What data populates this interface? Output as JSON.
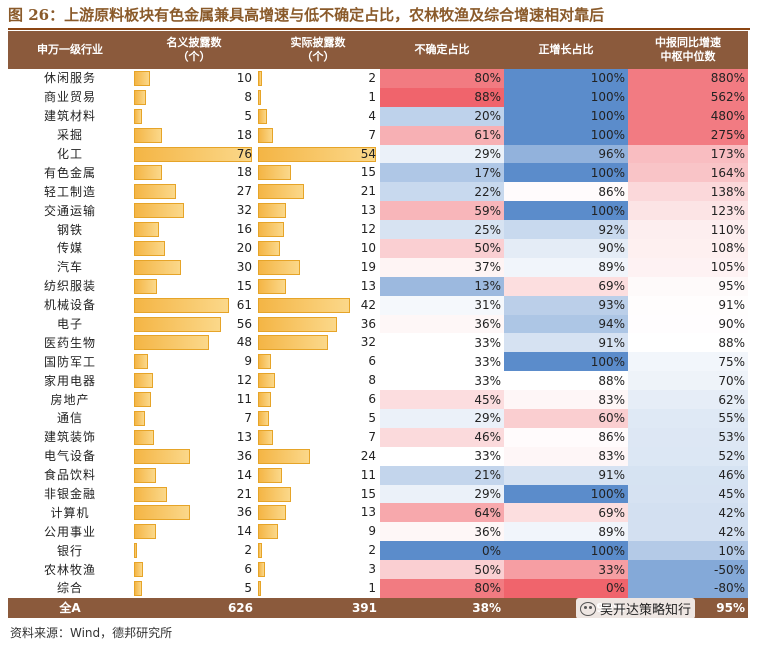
{
  "title": "图 26：上游原料板块有色金属兼具高增速与低不确定占比，农林牧渔及综合增速相对靠后",
  "headers": {
    "industry": "申万一级行业",
    "nominal": "名义披露数\n（个）",
    "actual": "实际披露数\n（个）",
    "uncertain": "不确定占比",
    "positive": "正增长占比",
    "median": "中报同比增速\n中枢中位数"
  },
  "colors": {
    "header_bg": "#8b5a3c",
    "bar": "#f4b545",
    "blue": "#5b8ccb",
    "red": "#f0646c"
  },
  "rows": [
    {
      "name": "休闲服务",
      "nominal": 10,
      "actual": 2,
      "uncertain": "80%",
      "positive": "100%",
      "median": "880%"
    },
    {
      "name": "商业贸易",
      "nominal": 8,
      "actual": 1,
      "uncertain": "88%",
      "positive": "100%",
      "median": "562%"
    },
    {
      "name": "建筑材料",
      "nominal": 5,
      "actual": 4,
      "uncertain": "20%",
      "positive": "100%",
      "median": "480%"
    },
    {
      "name": "采掘",
      "nominal": 18,
      "actual": 7,
      "uncertain": "61%",
      "positive": "100%",
      "median": "275%"
    },
    {
      "name": "化工",
      "nominal": 76,
      "actual": 54,
      "uncertain": "29%",
      "positive": "96%",
      "median": "173%"
    },
    {
      "name": "有色金属",
      "nominal": 18,
      "actual": 15,
      "uncertain": "17%",
      "positive": "100%",
      "median": "164%"
    },
    {
      "name": "轻工制造",
      "nominal": 27,
      "actual": 21,
      "uncertain": "22%",
      "positive": "86%",
      "median": "138%"
    },
    {
      "name": "交通运输",
      "nominal": 32,
      "actual": 13,
      "uncertain": "59%",
      "positive": "100%",
      "median": "123%"
    },
    {
      "name": "钢铁",
      "nominal": 16,
      "actual": 12,
      "uncertain": "25%",
      "positive": "92%",
      "median": "110%"
    },
    {
      "name": "传媒",
      "nominal": 20,
      "actual": 10,
      "uncertain": "50%",
      "positive": "90%",
      "median": "108%"
    },
    {
      "name": "汽车",
      "nominal": 30,
      "actual": 19,
      "uncertain": "37%",
      "positive": "89%",
      "median": "105%"
    },
    {
      "name": "纺织服装",
      "nominal": 15,
      "actual": 13,
      "uncertain": "13%",
      "positive": "69%",
      "median": "95%"
    },
    {
      "name": "机械设备",
      "nominal": 61,
      "actual": 42,
      "uncertain": "31%",
      "positive": "93%",
      "median": "91%"
    },
    {
      "name": "电子",
      "nominal": 56,
      "actual": 36,
      "uncertain": "36%",
      "positive": "94%",
      "median": "90%"
    },
    {
      "name": "医药生物",
      "nominal": 48,
      "actual": 32,
      "uncertain": "33%",
      "positive": "91%",
      "median": "88%"
    },
    {
      "name": "国防军工",
      "nominal": 9,
      "actual": 6,
      "uncertain": "33%",
      "positive": "100%",
      "median": "75%"
    },
    {
      "name": "家用电器",
      "nominal": 12,
      "actual": 8,
      "uncertain": "33%",
      "positive": "88%",
      "median": "70%"
    },
    {
      "name": "房地产",
      "nominal": 11,
      "actual": 6,
      "uncertain": "45%",
      "positive": "83%",
      "median": "62%"
    },
    {
      "name": "通信",
      "nominal": 7,
      "actual": 5,
      "uncertain": "29%",
      "positive": "60%",
      "median": "55%"
    },
    {
      "name": "建筑装饰",
      "nominal": 13,
      "actual": 7,
      "uncertain": "46%",
      "positive": "86%",
      "median": "53%"
    },
    {
      "name": "电气设备",
      "nominal": 36,
      "actual": 24,
      "uncertain": "33%",
      "positive": "83%",
      "median": "52%"
    },
    {
      "name": "食品饮料",
      "nominal": 14,
      "actual": 11,
      "uncertain": "21%",
      "positive": "91%",
      "median": "46%"
    },
    {
      "name": "非银金融",
      "nominal": 21,
      "actual": 15,
      "uncertain": "29%",
      "positive": "100%",
      "median": "45%"
    },
    {
      "name": "计算机",
      "nominal": 36,
      "actual": 13,
      "uncertain": "64%",
      "positive": "69%",
      "median": "42%"
    },
    {
      "name": "公用事业",
      "nominal": 14,
      "actual": 9,
      "uncertain": "36%",
      "positive": "89%",
      "median": "42%"
    },
    {
      "name": "银行",
      "nominal": 2,
      "actual": 2,
      "uncertain": "0%",
      "positive": "100%",
      "median": "10%"
    },
    {
      "name": "农林牧渔",
      "nominal": 6,
      "actual": 3,
      "uncertain": "50%",
      "positive": "33%",
      "median": "-50%"
    },
    {
      "name": "综合",
      "nominal": 5,
      "actual": 1,
      "uncertain": "80%",
      "positive": "0%",
      "median": "-80%"
    }
  ],
  "total": {
    "name": "全A",
    "nominal": 626,
    "actual": 391,
    "uncertain": "38%",
    "positive": "90%",
    "median": "95%"
  },
  "source": "资料来源：Wind，德邦研究所",
  "watermark": "吴开达策略知行",
  "watermark_icon": "wechat-icon"
}
